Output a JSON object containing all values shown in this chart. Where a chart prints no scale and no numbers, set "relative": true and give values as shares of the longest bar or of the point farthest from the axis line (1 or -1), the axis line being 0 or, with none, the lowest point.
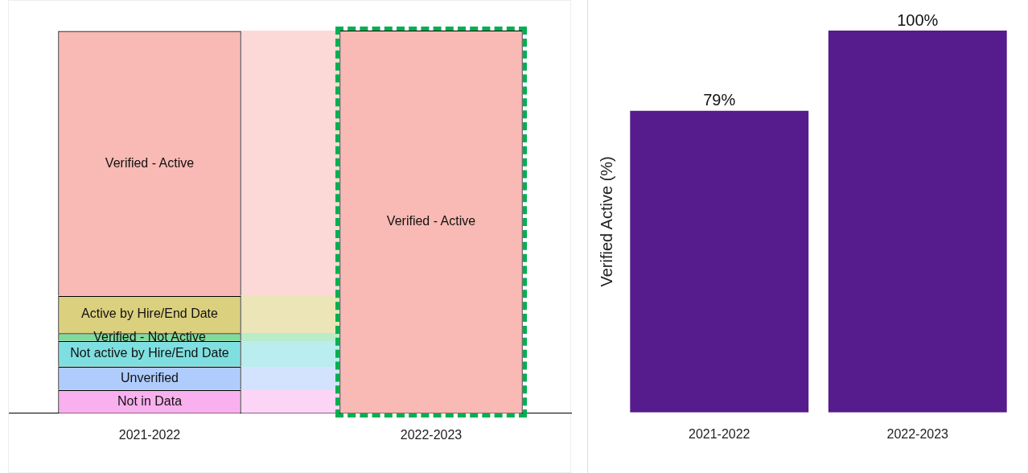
{
  "chart_data": [
    {
      "type": "bar",
      "stacked": true,
      "relative": true,
      "legend": false,
      "categories": [
        "2021-2022",
        "2022-2023"
      ],
      "series": [
        {
          "name": "Not in Data",
          "color": "#f9b0ef",
          "values": [
            0.061,
            null
          ]
        },
        {
          "name": "Unverified",
          "color": "#b0ccfc",
          "values": [
            0.061,
            null
          ]
        },
        {
          "name": "Not active by Hire/End Date",
          "color": "#7fdfe0",
          "values": [
            0.067,
            null
          ]
        },
        {
          "name": "Verified - Not Active",
          "color": "#7fdc9a",
          "values": [
            0.02,
            null
          ]
        },
        {
          "name": "Active by Hire/End Date",
          "color": "#dbd07e",
          "values": [
            0.098,
            null
          ]
        },
        {
          "name": "Verified - Active",
          "color": "#f9b9b4",
          "values": [
            0.692,
            1
          ]
        }
      ]
    },
    {
      "type": "bar",
      "categories": [
        "2021-2022",
        "2022-2023"
      ],
      "values": [
        79,
        100
      ],
      "value_labels": [
        "79%",
        "100%"
      ],
      "color": "#561b8c",
      "ylabel": "Verified Active (%)",
      "tick_labels": "x"
    }
  ]
}
